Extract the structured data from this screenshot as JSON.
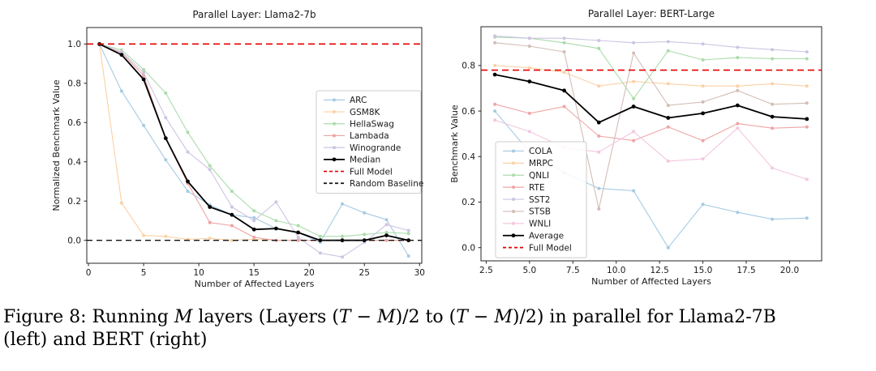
{
  "figure": {
    "caption_segments": [
      {
        "t": "Figure 8: Running "
      },
      {
        "t": "M",
        "i": true
      },
      {
        "t": " layers (Layers ("
      },
      {
        "t": "T",
        "i": true
      },
      {
        "t": " − "
      },
      {
        "t": "M",
        "i": true
      },
      {
        "t": ")/2 to ("
      },
      {
        "t": "T",
        "i": true
      },
      {
        "t": " − "
      },
      {
        "t": "M",
        "i": true
      },
      {
        "t": ")/2) in parallel for Llama2-7B"
      },
      {
        "br": true
      },
      {
        "t": "(left) and BERT (right)"
      }
    ]
  },
  "colors": {
    "full_model_red": "#e60000",
    "random_baseline_black": "#111111",
    "median_black": "#000000",
    "axis_text": "#1a1a1a"
  },
  "chart_data": [
    {
      "type": "line",
      "title": "Parallel Layer: Llama2-7b",
      "xlabel": "Number of Affected Layers",
      "ylabel": "Normalized Benchmark Value",
      "x": [
        1,
        3,
        5,
        7,
        9,
        11,
        13,
        15,
        17,
        19,
        21,
        23,
        25,
        27,
        29
      ],
      "xticks": [
        0,
        5,
        10,
        15,
        20,
        25,
        30
      ],
      "xtick_labels": [
        "0",
        "5",
        "10",
        "15",
        "20",
        "25",
        "30"
      ],
      "yticks": [
        0,
        0.2,
        0.4,
        0.6,
        0.8,
        1
      ],
      "ytick_labels": [
        "0.0",
        "0.2",
        "0.4",
        "0.6",
        "0.8",
        "1.0"
      ],
      "xlim": [
        -0.15,
        30.2
      ],
      "ylim": [
        -0.117,
        1.084
      ],
      "grid": false,
      "legend_position": "center-right-inside",
      "series": [
        {
          "name": "ARC",
          "color": "#a6cbe3",
          "emph": false,
          "values": [
            1.0,
            0.76,
            0.585,
            0.41,
            0.25,
            0.18,
            0.13,
            0.115,
            0.06,
            0.04,
            -0.01,
            0.185,
            0.14,
            0.105,
            -0.08
          ]
        },
        {
          "name": "GSM8K",
          "color": "#fbd1a5",
          "emph": false,
          "values": [
            1.0,
            0.19,
            0.025,
            0.02,
            0.005,
            0.01,
            0.0,
            0.005,
            0.0,
            0.0,
            0.0,
            0.0,
            0.0,
            0.0,
            0.0
          ]
        },
        {
          "name": "HellaSwag",
          "color": "#abdcab",
          "emph": false,
          "values": [
            1.0,
            0.97,
            0.87,
            0.75,
            0.55,
            0.38,
            0.25,
            0.15,
            0.1,
            0.075,
            0.02,
            0.02,
            0.03,
            0.04,
            0.035
          ]
        },
        {
          "name": "Lambada",
          "color": "#efa3a3",
          "emph": false,
          "values": [
            1.0,
            0.955,
            0.84,
            0.52,
            0.29,
            0.09,
            0.075,
            0.015,
            0.0,
            0.0,
            0.0,
            0.0,
            0.0,
            0.0,
            0.0
          ]
        },
        {
          "name": "Winogrande",
          "color": "#cdc4e3",
          "emph": false,
          "values": [
            1.0,
            0.96,
            0.855,
            0.625,
            0.45,
            0.36,
            0.17,
            0.1,
            0.195,
            0.015,
            -0.065,
            -0.085,
            -0.01,
            0.08,
            0.05
          ]
        },
        {
          "name": "Median",
          "color": "#000000",
          "emph": true,
          "values": [
            1.0,
            0.945,
            0.82,
            0.52,
            0.3,
            0.17,
            0.13,
            0.055,
            0.06,
            0.04,
            0.0,
            0.0,
            0.0,
            0.025,
            0.0
          ]
        }
      ],
      "hlines": [
        {
          "name": "Full Model",
          "y": 1.0,
          "color": "#e60000",
          "dash": "8,5",
          "width": 1.6
        },
        {
          "name": "Random Baseline",
          "y": 0.0,
          "color": "#111111",
          "dash": "7,5",
          "width": 1.4
        }
      ]
    },
    {
      "type": "line",
      "title": "Parallel Layer: BERT-Large",
      "xlabel": "Number of Affected Layers",
      "ylabel": "Benchmark Value",
      "x": [
        3,
        5,
        7,
        9,
        11,
        13,
        15,
        17,
        19,
        21
      ],
      "xticks": [
        2.5,
        5,
        7.5,
        10,
        12.5,
        15,
        17.5,
        20
      ],
      "xtick_labels": [
        "2.5",
        "5.0",
        "7.5",
        "10.0",
        "12.5",
        "15.0",
        "17.5",
        "20.0"
      ],
      "yticks": [
        0,
        0.2,
        0.4,
        0.6,
        0.8
      ],
      "ytick_labels": [
        "0.0",
        "0.2",
        "0.4",
        "0.6",
        "0.8"
      ],
      "xlim": [
        2.2,
        21.85
      ],
      "ylim": [
        -0.058,
        0.9705
      ],
      "grid": false,
      "legend_position": "lower-left-inside",
      "series": [
        {
          "name": "COLA",
          "color": "#a6cbe3",
          "emph": false,
          "values": [
            0.6,
            0.42,
            0.33,
            0.26,
            0.25,
            0.0,
            0.19,
            0.155,
            0.125,
            0.13
          ]
        },
        {
          "name": "MRPC",
          "color": "#fbd1a5",
          "emph": false,
          "values": [
            0.8,
            0.79,
            0.77,
            0.71,
            0.73,
            0.72,
            0.71,
            0.71,
            0.72,
            0.71
          ]
        },
        {
          "name": "QNLI",
          "color": "#abdcab",
          "emph": false,
          "values": [
            0.925,
            0.92,
            0.9,
            0.875,
            0.655,
            0.865,
            0.825,
            0.835,
            0.83,
            0.83
          ]
        },
        {
          "name": "RTE",
          "color": "#eea5a6",
          "emph": false,
          "values": [
            0.63,
            0.59,
            0.62,
            0.49,
            0.47,
            0.53,
            0.47,
            0.545,
            0.525,
            0.53
          ]
        },
        {
          "name": "SST2",
          "color": "#cdc4e3",
          "emph": false,
          "values": [
            0.93,
            0.92,
            0.92,
            0.91,
            0.9,
            0.905,
            0.895,
            0.88,
            0.87,
            0.86
          ]
        },
        {
          "name": "STSB",
          "color": "#d3bdb6",
          "emph": false,
          "values": [
            0.9,
            0.885,
            0.86,
            0.17,
            0.855,
            0.625,
            0.64,
            0.69,
            0.63,
            0.635
          ]
        },
        {
          "name": "WNLI",
          "color": "#f3c7e0",
          "emph": false,
          "values": [
            0.56,
            0.51,
            0.44,
            0.42,
            0.51,
            0.38,
            0.39,
            0.525,
            0.35,
            0.3
          ]
        },
        {
          "name": "Average",
          "color": "#000000",
          "emph": true,
          "values": [
            0.76,
            0.73,
            0.69,
            0.55,
            0.62,
            0.57,
            0.59,
            0.625,
            0.575,
            0.565
          ]
        }
      ],
      "hlines": [
        {
          "name": "Full Model",
          "y": 0.78,
          "color": "#e60000",
          "dash": "8,5",
          "width": 1.6
        }
      ]
    }
  ]
}
